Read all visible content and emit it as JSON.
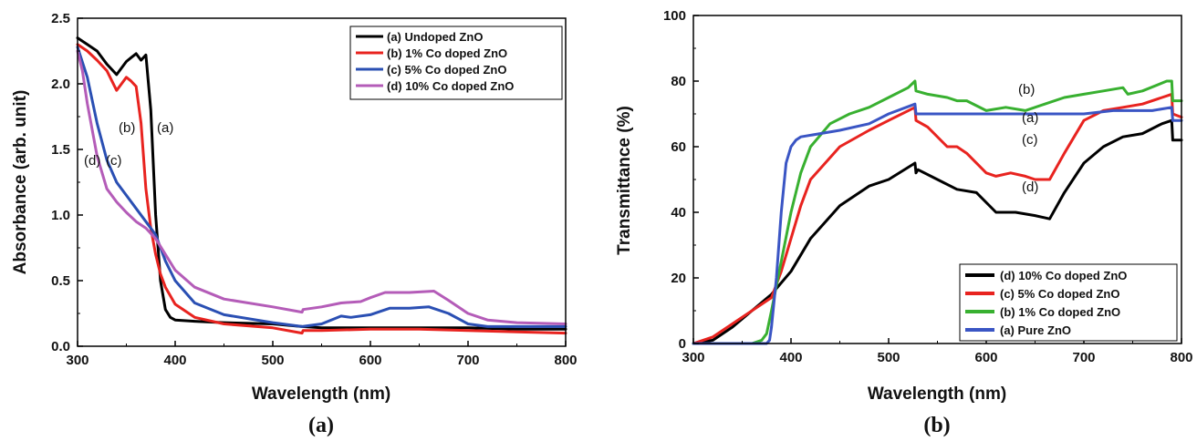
{
  "chart_data": [
    {
      "type": "line",
      "panel_label": "(a)",
      "xlabel": "Wavelength (nm)",
      "ylabel": "Absorbance (arb. unit)",
      "xlim": [
        300,
        800
      ],
      "ylim": [
        0,
        2.5
      ],
      "xticks": [
        300,
        400,
        500,
        600,
        700,
        800
      ],
      "yticks": [
        0.0,
        0.5,
        1.0,
        1.5,
        2.0,
        2.5
      ],
      "ytick_labels": [
        "0.0",
        "0.5",
        "1.0",
        "1.5",
        "2.0",
        "2.5"
      ],
      "grid": false,
      "legend_position": "top-right",
      "series": [
        {
          "name": "(a) Undoped ZnO",
          "color": "#000000",
          "label": "(a)",
          "x": [
            300,
            310,
            320,
            330,
            340,
            350,
            355,
            360,
            365,
            370,
            375,
            380,
            385,
            390,
            395,
            400,
            420,
            450,
            500,
            530,
            550,
            600,
            650,
            700,
            750,
            800
          ],
          "y": [
            2.35,
            2.3,
            2.25,
            2.15,
            2.07,
            2.17,
            2.2,
            2.23,
            2.18,
            2.22,
            1.8,
            1.0,
            0.5,
            0.28,
            0.22,
            0.2,
            0.19,
            0.18,
            0.17,
            0.15,
            0.14,
            0.14,
            0.14,
            0.14,
            0.13,
            0.13
          ]
        },
        {
          "name": "(b) 1% Co doped ZnO",
          "color": "#e8231f",
          "label": "(b)",
          "x": [
            300,
            310,
            320,
            330,
            340,
            345,
            350,
            355,
            360,
            365,
            370,
            375,
            380,
            385,
            390,
            400,
            420,
            450,
            500,
            530,
            531,
            550,
            600,
            650,
            700,
            750,
            800
          ],
          "y": [
            2.3,
            2.25,
            2.18,
            2.1,
            1.95,
            2.0,
            2.05,
            2.02,
            1.98,
            1.7,
            1.2,
            0.9,
            0.7,
            0.55,
            0.45,
            0.32,
            0.22,
            0.17,
            0.14,
            0.1,
            0.12,
            0.12,
            0.13,
            0.13,
            0.12,
            0.11,
            0.1
          ]
        },
        {
          "name": "(c) 5% Co doped ZnO",
          "color": "#2a4fb3",
          "label": "(c)",
          "x": [
            300,
            310,
            320,
            330,
            340,
            350,
            360,
            370,
            380,
            390,
            400,
            420,
            450,
            500,
            530,
            550,
            570,
            580,
            600,
            620,
            640,
            660,
            680,
            700,
            720,
            750,
            800
          ],
          "y": [
            2.28,
            2.05,
            1.7,
            1.42,
            1.25,
            1.15,
            1.05,
            0.95,
            0.85,
            0.65,
            0.5,
            0.33,
            0.24,
            0.18,
            0.15,
            0.17,
            0.23,
            0.22,
            0.24,
            0.29,
            0.29,
            0.3,
            0.25,
            0.17,
            0.15,
            0.15,
            0.15
          ]
        },
        {
          "name": "(d) 10% Co doped ZnO",
          "color": "#b45cb8",
          "label": "(d)",
          "x": [
            300,
            305,
            310,
            320,
            330,
            340,
            350,
            360,
            370,
            380,
            390,
            400,
            420,
            450,
            500,
            530,
            531,
            550,
            570,
            590,
            600,
            615,
            640,
            665,
            680,
            700,
            720,
            750,
            800
          ],
          "y": [
            2.25,
            2.1,
            1.85,
            1.45,
            1.2,
            1.1,
            1.02,
            0.95,
            0.9,
            0.82,
            0.7,
            0.58,
            0.45,
            0.36,
            0.3,
            0.26,
            0.28,
            0.3,
            0.33,
            0.34,
            0.37,
            0.41,
            0.41,
            0.42,
            0.35,
            0.25,
            0.2,
            0.18,
            0.17
          ]
        }
      ]
    },
    {
      "type": "line",
      "panel_label": "(b)",
      "xlabel": "Wavelength (nm)",
      "ylabel": "Transmittance (%)",
      "xlim": [
        300,
        800
      ],
      "ylim": [
        0,
        100
      ],
      "xticks": [
        300,
        400,
        500,
        600,
        700,
        800
      ],
      "yticks": [
        0,
        20,
        40,
        60,
        80,
        100
      ],
      "ytick_labels": [
        "0",
        "20",
        "40",
        "60",
        "80",
        "100"
      ],
      "grid": false,
      "legend_position": "bottom-right",
      "series": [
        {
          "name": "(d) 10% Co doped ZnO",
          "color": "#000000",
          "label": "(d)",
          "x": [
            300,
            320,
            340,
            360,
            380,
            400,
            420,
            450,
            480,
            500,
            527,
            528,
            530,
            550,
            570,
            590,
            610,
            630,
            650,
            665,
            680,
            700,
            720,
            740,
            760,
            780,
            790,
            791,
            800
          ],
          "y": [
            0,
            1,
            5,
            10,
            15,
            22,
            32,
            42,
            48,
            50,
            55,
            52,
            53,
            50,
            47,
            46,
            40,
            40,
            39,
            38,
            46,
            55,
            60,
            63,
            64,
            67,
            68,
            62,
            62
          ]
        },
        {
          "name": "(c) 5% Co doped ZnO",
          "color": "#e8231f",
          "label": "(c)",
          "x": [
            300,
            320,
            340,
            360,
            380,
            390,
            400,
            410,
            420,
            450,
            480,
            500,
            527,
            528,
            540,
            560,
            570,
            580,
            600,
            610,
            625,
            640,
            650,
            665,
            680,
            700,
            720,
            740,
            760,
            780,
            790,
            791,
            800
          ],
          "y": [
            0,
            2,
            6,
            10,
            14,
            22,
            32,
            42,
            50,
            60,
            65,
            68,
            72,
            68,
            66,
            60,
            60,
            58,
            52,
            51,
            52,
            51,
            50,
            50,
            58,
            68,
            71,
            72,
            73,
            75,
            76,
            70,
            69
          ]
        },
        {
          "name": "(b) 1% Co doped ZnO",
          "color": "#38b030",
          "label": "(b)",
          "x": [
            300,
            340,
            360,
            370,
            375,
            380,
            390,
            400,
            410,
            420,
            440,
            460,
            480,
            500,
            520,
            527,
            528,
            540,
            560,
            570,
            580,
            600,
            620,
            640,
            660,
            680,
            700,
            720,
            740,
            745,
            760,
            785,
            790,
            791,
            800
          ],
          "y": [
            0,
            0,
            0,
            1,
            3,
            10,
            25,
            40,
            52,
            60,
            67,
            70,
            72,
            75,
            78,
            80,
            77,
            76,
            75,
            74,
            74,
            71,
            72,
            71,
            73,
            75,
            76,
            77,
            78,
            76,
            77,
            80,
            80,
            74,
            74
          ]
        },
        {
          "name": "(a) Pure ZnO",
          "color": "#3a55c4",
          "label": "(a)",
          "x": [
            300,
            360,
            375,
            378,
            380,
            385,
            390,
            395,
            400,
            405,
            410,
            430,
            450,
            480,
            500,
            527,
            528,
            540,
            560,
            580,
            600,
            620,
            650,
            680,
            700,
            730,
            750,
            770,
            790,
            791,
            800
          ],
          "y": [
            0,
            0,
            0,
            1,
            5,
            20,
            40,
            55,
            60,
            62,
            63,
            64,
            65,
            67,
            70,
            73,
            70,
            70,
            70,
            70,
            70,
            70,
            70,
            70,
            70,
            71,
            71,
            71,
            72,
            68,
            68
          ]
        }
      ]
    }
  ]
}
